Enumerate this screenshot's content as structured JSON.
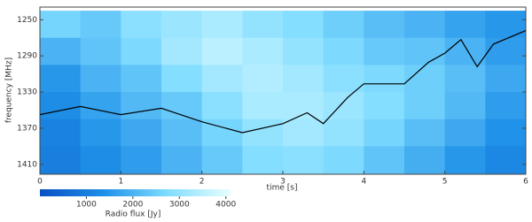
{
  "chart_data": {
    "type": "heatmap",
    "x_label": "time [s]",
    "y_label": "frequency [MHz]",
    "xbins": [
      0,
      0.5,
      1,
      1.5,
      2,
      2.5,
      3,
      3.5,
      4,
      4.5,
      5,
      5.5,
      6
    ],
    "ybins": [
      1240,
      1270,
      1300,
      1330,
      1360,
      1390,
      1420
    ],
    "values": [
      [
        2600,
        2400,
        2900,
        3100,
        3300,
        3000,
        2800,
        2500,
        2200,
        2000,
        1700,
        1500
      ],
      [
        2000,
        2300,
        2700,
        3200,
        3500,
        3300,
        3000,
        2700,
        2400,
        2300,
        2000,
        1600
      ],
      [
        1500,
        2000,
        2300,
        2800,
        3200,
        3400,
        3200,
        2900,
        2700,
        2500,
        2200,
        1800
      ],
      [
        1300,
        1700,
        2100,
        2400,
        2900,
        3300,
        3300,
        3100,
        2800,
        2500,
        2100,
        1600
      ],
      [
        1100,
        1500,
        1800,
        2200,
        2600,
        3000,
        3200,
        3000,
        2600,
        2200,
        1800,
        1400
      ],
      [
        1000,
        1300,
        1600,
        2000,
        2400,
        2800,
        2900,
        2700,
        2300,
        1900,
        1500,
        1200
      ]
    ],
    "colormap": [
      "#0a4fc4",
      "#1e90e8",
      "#7fdcff",
      "#e8ffff"
    ],
    "xlim": [
      0,
      6
    ],
    "xticks": [
      0,
      1,
      2,
      3,
      4,
      5,
      6
    ],
    "ylim": [
      1421,
      1236
    ],
    "yticks": [
      1250,
      1290,
      1330,
      1370,
      1410
    ],
    "colorbar": {
      "label": "Radio flux [Jy]",
      "lim": [
        0,
        4100
      ],
      "ticks": [
        1000,
        2000,
        3000,
        4000
      ]
    },
    "line": {
      "color": "#000000",
      "x": [
        0,
        0.5,
        1,
        1.5,
        2,
        2.5,
        3,
        3.3,
        3.5,
        3.8,
        4,
        4.5,
        4.8,
        5,
        5.2,
        5.4,
        5.6,
        6
      ],
      "values": [
        1355,
        1346,
        1355,
        1348,
        1363,
        1375,
        1365,
        1353,
        1365,
        1336,
        1321,
        1321,
        1297,
        1287,
        1272,
        1302,
        1277,
        1262
      ]
    }
  }
}
